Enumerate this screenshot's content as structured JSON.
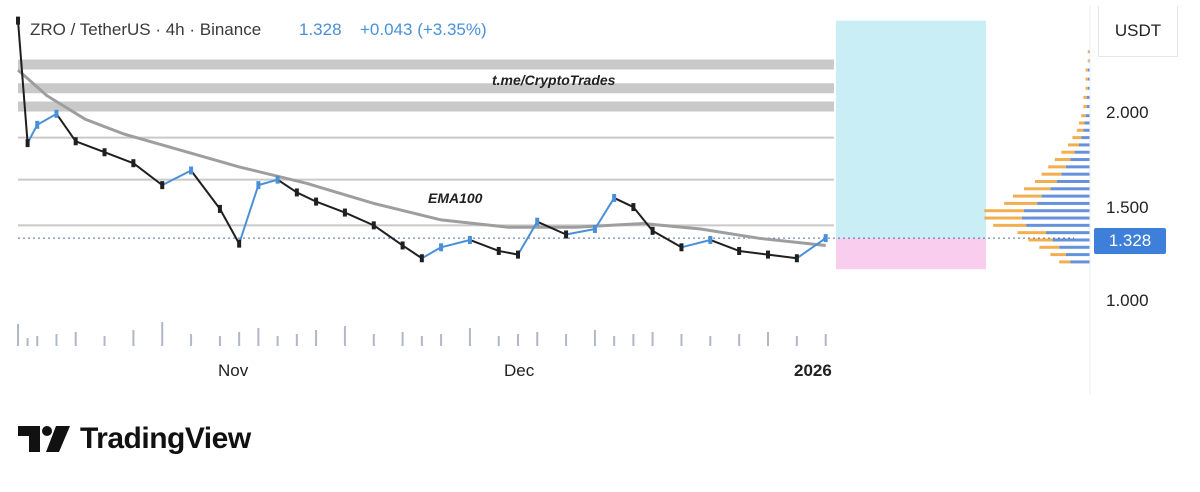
{
  "header": {
    "symbol_line": "ZRO / TetherUS · 4h · Binance",
    "last_price": "1.328",
    "change": "+0.043 (+3.35%)"
  },
  "currency_label": "USDT",
  "price_tag": "1.328",
  "annotations": {
    "channel": "t.me/CryptoTrades",
    "ema": "EMA100"
  },
  "brand": {
    "name": "TradingView"
  },
  "colors": {
    "up": "#4a90d9",
    "down": "#1f1f1f",
    "ema": "#9e9e9e",
    "zone_gray": "#c9c9c9",
    "target_box": "#c9eef6",
    "stop_box": "#f9cdee",
    "vp_orange": "#f0a030",
    "vp_blue": "#4a7fd4",
    "price_tag": "#3d7fd9"
  },
  "chart_data": {
    "type": "line",
    "title": "ZRO / TetherUS · 4h · Binance",
    "ylabel": "USDT",
    "y_ticks": [
      "2.000",
      "1.500",
      "1.000"
    ],
    "x_ticks": [
      "Nov",
      "Dec",
      "2026"
    ],
    "ylim": [
      0.74,
      2.6
    ],
    "xlim": [
      "2025-10-09",
      "2026-01-21"
    ],
    "series": [
      {
        "name": "",
        "x": [
          "2025-10-09",
          "2025-10-10",
          "2025-10-11",
          "2025-10-13",
          "2025-10-15",
          "2025-10-18",
          "2025-10-21",
          "2025-10-24",
          "2025-10-27",
          "2025-10-30",
          "2025-11-01",
          "2025-11-03",
          "2025-11-05",
          "2025-11-07",
          "2025-11-09",
          "2025-11-12",
          "2025-11-15",
          "2025-11-18",
          "2025-11-20",
          "2025-11-22",
          "2025-11-25",
          "2025-11-28",
          "2025-11-30",
          "2025-12-02",
          "2025-12-05",
          "2025-12-08",
          "2025-12-10",
          "2025-12-12",
          "2025-12-14",
          "2025-12-17",
          "2025-12-20",
          "2025-12-23",
          "2025-12-26",
          "2025-12-29",
          "2026-01-01"
        ],
        "values": [
          2.52,
          1.85,
          1.95,
          2.01,
          1.86,
          1.8,
          1.74,
          1.62,
          1.7,
          1.49,
          1.3,
          1.62,
          1.65,
          1.58,
          1.53,
          1.47,
          1.4,
          1.29,
          1.22,
          1.28,
          1.32,
          1.26,
          1.24,
          1.42,
          1.35,
          1.38,
          1.55,
          1.5,
          1.37,
          1.28,
          1.32,
          1.26,
          1.24,
          1.22,
          1.33
        ]
      },
      {
        "name": "EMA100",
        "x": [
          "2025-10-09",
          "2025-10-12",
          "2025-10-16",
          "2025-10-20",
          "2025-10-26",
          "2025-11-01",
          "2025-11-08",
          "2025-11-15",
          "2025-11-22",
          "2025-11-29",
          "2025-12-06",
          "2025-12-13",
          "2025-12-19",
          "2025-12-25",
          "2026-01-01"
        ],
        "values": [
          2.25,
          2.11,
          1.98,
          1.9,
          1.81,
          1.72,
          1.63,
          1.52,
          1.43,
          1.39,
          1.39,
          1.41,
          1.38,
          1.33,
          1.29
        ]
      }
    ],
    "volume": [
      22,
      8,
      10,
      12,
      14,
      10,
      16,
      24,
      12,
      10,
      14,
      18,
      10,
      12,
      16,
      20,
      12,
      14,
      10,
      12,
      18,
      10,
      12,
      14,
      12,
      16,
      10,
      12,
      14,
      12,
      10,
      12,
      14,
      10,
      12
    ],
    "horizontal_zones": [
      2.28,
      2.15,
      2.05,
      1.88,
      1.65,
      1.4
    ],
    "position_tool": {
      "target_top": 2.52,
      "target_bottom": 1.33,
      "stop_bottom": 1.16
    },
    "volume_profile": {
      "levels": [
        1.2,
        1.24,
        1.28,
        1.32,
        1.36,
        1.4,
        1.44,
        1.48,
        1.52,
        1.56,
        1.6,
        1.64,
        1.68,
        1.72,
        1.76,
        1.8,
        1.84,
        1.88,
        1.92,
        1.96,
        2.0,
        2.05,
        2.1,
        2.15,
        2.2,
        2.25,
        2.3,
        2.35
      ],
      "buy": [
        18,
        22,
        28,
        34,
        40,
        58,
        62,
        60,
        48,
        44,
        36,
        30,
        26,
        22,
        18,
        14,
        10,
        8,
        6,
        5,
        4,
        3,
        3,
        2,
        2,
        2,
        1,
        1
      ],
      "sell": [
        10,
        14,
        18,
        22,
        26,
        30,
        34,
        36,
        30,
        26,
        24,
        20,
        18,
        16,
        14,
        12,
        10,
        8,
        6,
        5,
        4,
        3,
        3,
        2,
        2,
        2,
        1,
        1
      ]
    }
  }
}
